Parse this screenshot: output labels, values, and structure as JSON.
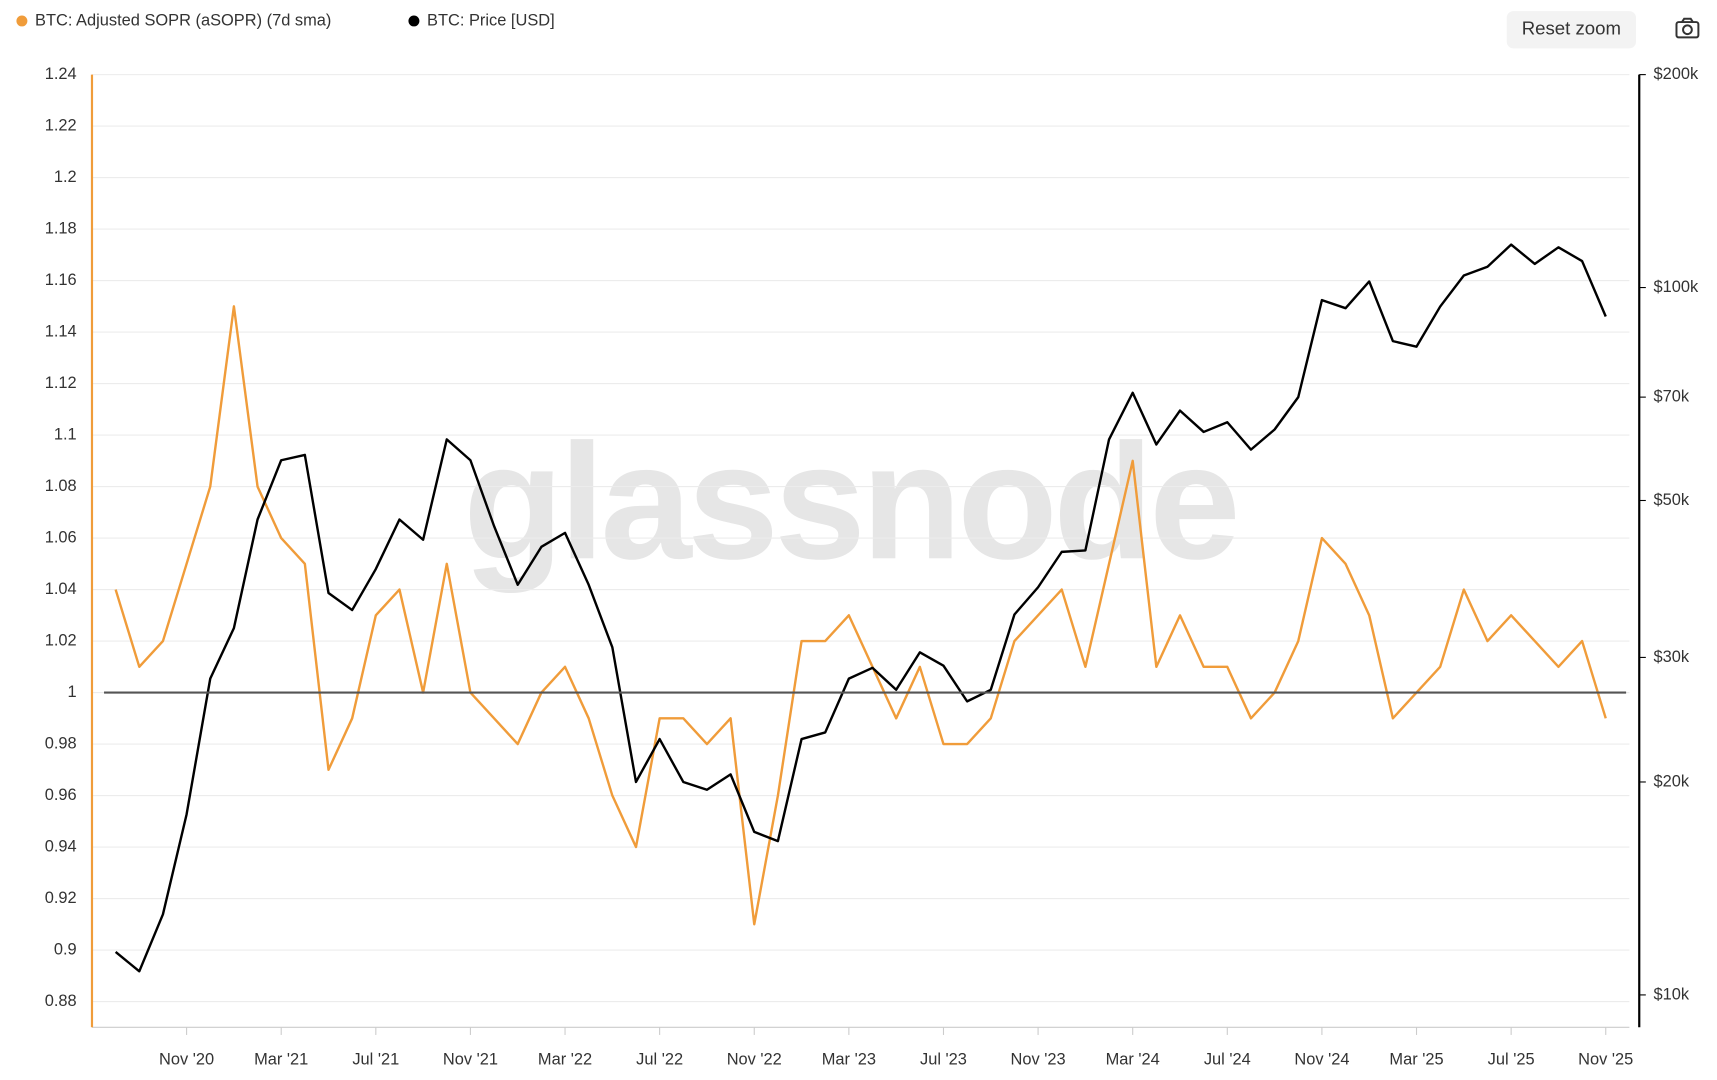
{
  "chart_data": {
    "type": "line",
    "watermark": "glassnode",
    "reset_button": "Reset zoom",
    "x": [
      "2020-08",
      "2020-09",
      "2020-10",
      "2020-11",
      "2020-12",
      "2021-01",
      "2021-02",
      "2021-03",
      "2021-04",
      "2021-05",
      "2021-06",
      "2021-07",
      "2021-08",
      "2021-09",
      "2021-10",
      "2021-11",
      "2021-12",
      "2022-01",
      "2022-02",
      "2022-03",
      "2022-04",
      "2022-05",
      "2022-06",
      "2022-07",
      "2022-08",
      "2022-09",
      "2022-10",
      "2022-11",
      "2022-12",
      "2023-01",
      "2023-02",
      "2023-03",
      "2023-04",
      "2023-05",
      "2023-06",
      "2023-07",
      "2023-08",
      "2023-09",
      "2023-10",
      "2023-11",
      "2023-12",
      "2024-01",
      "2024-02",
      "2024-03",
      "2024-04",
      "2024-05",
      "2024-06",
      "2024-07",
      "2024-08",
      "2024-09",
      "2024-10",
      "2024-11",
      "2024-12",
      "2025-01",
      "2025-02",
      "2025-03",
      "2025-04",
      "2025-05",
      "2025-06",
      "2025-07",
      "2025-08",
      "2025-09",
      "2025-10",
      "2025-11"
    ],
    "xlim": [
      "2020-07",
      "2025-12"
    ],
    "xticks": [
      {
        "value": "2020-11",
        "label": "Nov '20"
      },
      {
        "value": "2021-03",
        "label": "Mar '21"
      },
      {
        "value": "2021-07",
        "label": "Jul '21"
      },
      {
        "value": "2021-11",
        "label": "Nov '21"
      },
      {
        "value": "2022-03",
        "label": "Mar '22"
      },
      {
        "value": "2022-07",
        "label": "Jul '22"
      },
      {
        "value": "2022-11",
        "label": "Nov '22"
      },
      {
        "value": "2023-03",
        "label": "Mar '23"
      },
      {
        "value": "2023-07",
        "label": "Jul '23"
      },
      {
        "value": "2023-11",
        "label": "Nov '23"
      },
      {
        "value": "2024-03",
        "label": "Mar '24"
      },
      {
        "value": "2024-07",
        "label": "Jul '24"
      },
      {
        "value": "2024-11",
        "label": "Nov '24"
      },
      {
        "value": "2025-03",
        "label": "Mar '25"
      },
      {
        "value": "2025-07",
        "label": "Jul '25"
      },
      {
        "value": "2025-11",
        "label": "Nov '25"
      }
    ],
    "ylim": [
      0.87,
      1.24
    ],
    "yticks": [
      0.88,
      0.9,
      0.92,
      0.94,
      0.96,
      0.98,
      1,
      1.02,
      1.04,
      1.06,
      1.08,
      1.1,
      1.12,
      1.14,
      1.16,
      1.18,
      1.2,
      1.22,
      1.24
    ],
    "y2lim": [
      9000,
      200000
    ],
    "y2_log": true,
    "y2ticks": [
      {
        "value": 10000,
        "label": "$10k"
      },
      {
        "value": 20000,
        "label": "$20k"
      },
      {
        "value": 30000,
        "label": "$30k"
      },
      {
        "value": 50000,
        "label": "$50k"
      },
      {
        "value": 70000,
        "label": "$70k"
      },
      {
        "value": 100000,
        "label": "$100k"
      },
      {
        "value": 200000,
        "label": "$200k"
      }
    ],
    "hline": 1,
    "grid": true,
    "series": [
      {
        "name": "BTC: Adjusted SOPR (aSOPR) (7d sma)",
        "color": "#f09c3a",
        "values": [
          1.04,
          1.01,
          1.02,
          1.05,
          1.08,
          1.15,
          1.08,
          1.06,
          1.05,
          0.97,
          0.99,
          1.03,
          1.04,
          1.0,
          1.05,
          1.0,
          0.99,
          0.98,
          1.0,
          1.01,
          0.99,
          0.96,
          0.94,
          0.99,
          0.99,
          0.98,
          0.99,
          0.91,
          0.96,
          1.02,
          1.02,
          1.03,
          1.01,
          0.99,
          1.01,
          0.98,
          0.98,
          0.99,
          1.02,
          1.03,
          1.04,
          1.01,
          1.05,
          1.09,
          1.01,
          1.03,
          1.01,
          1.01,
          0.99,
          1.0,
          1.02,
          1.06,
          1.05,
          1.03,
          0.99,
          1.0,
          1.01,
          1.04,
          1.02,
          1.03,
          1.02,
          1.01,
          1.02,
          0.99
        ]
      },
      {
        "name": "BTC: Price [USD]",
        "color": "#000000",
        "axis": "y2",
        "values": [
          11500,
          10800,
          13000,
          18000,
          28000,
          33000,
          47000,
          57000,
          58000,
          37000,
          35000,
          40000,
          47000,
          44000,
          61000,
          57000,
          46000,
          38000,
          43000,
          45000,
          38000,
          31000,
          20000,
          23000,
          20000,
          19500,
          20500,
          17000,
          16500,
          23000,
          23500,
          28000,
          29000,
          27000,
          30500,
          29200,
          26000,
          27000,
          34500,
          37700,
          42300,
          42500,
          61000,
          71000,
          60000,
          67000,
          62500,
          64500,
          59000,
          63000,
          70000,
          96000,
          93500,
          102000,
          84000,
          82500,
          94000,
          104000,
          107000,
          115000,
          108000,
          114000,
          109000,
          91000
        ]
      }
    ]
  }
}
